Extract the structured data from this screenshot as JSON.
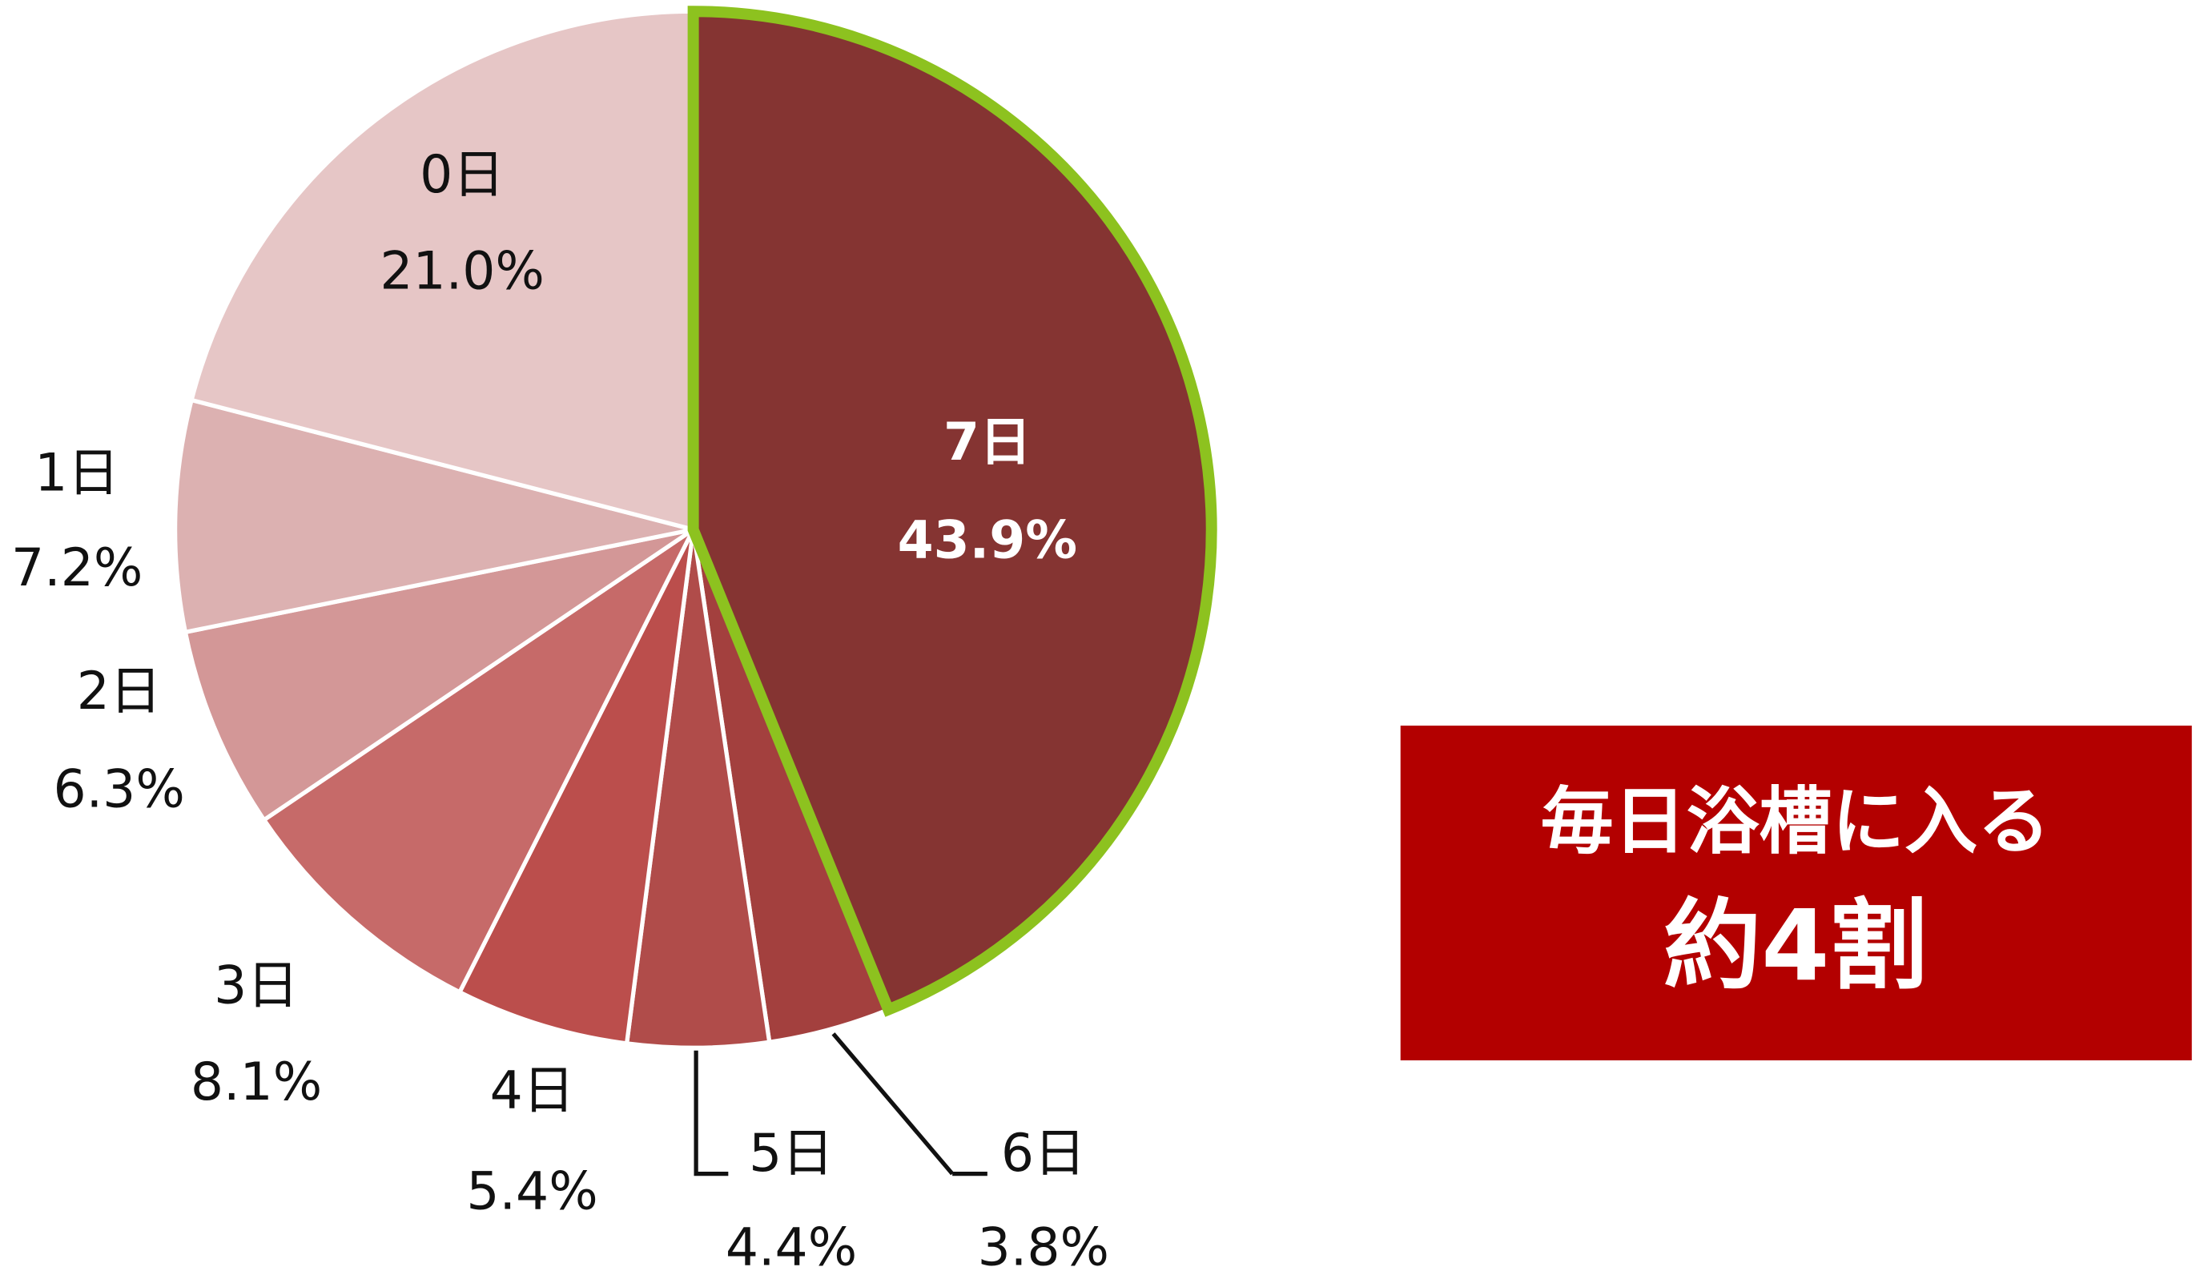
{
  "chart_data": {
    "type": "pie",
    "categories": [
      "7日",
      "6日",
      "5日",
      "4日",
      "3日",
      "2日",
      "1日",
      "0日"
    ],
    "values": [
      43.9,
      3.8,
      4.4,
      5.4,
      8.1,
      6.3,
      7.2,
      21.0
    ],
    "value_labels": [
      "43.9%",
      "3.8%",
      "4.4%",
      "5.4%",
      "8.1%",
      "6.3%",
      "7.2%",
      "21.0%"
    ],
    "colors": [
      "#853432",
      "#a3403e",
      "#b04c4a",
      "#bb4e4c",
      "#c66a69",
      "#d39797",
      "#dcb1b1",
      "#e6c6c6"
    ],
    "highlight": {
      "category_index": 0,
      "color": "#8dc21f"
    },
    "annotations": [
      "毎日浴槽に入る",
      "約4割"
    ]
  }
}
